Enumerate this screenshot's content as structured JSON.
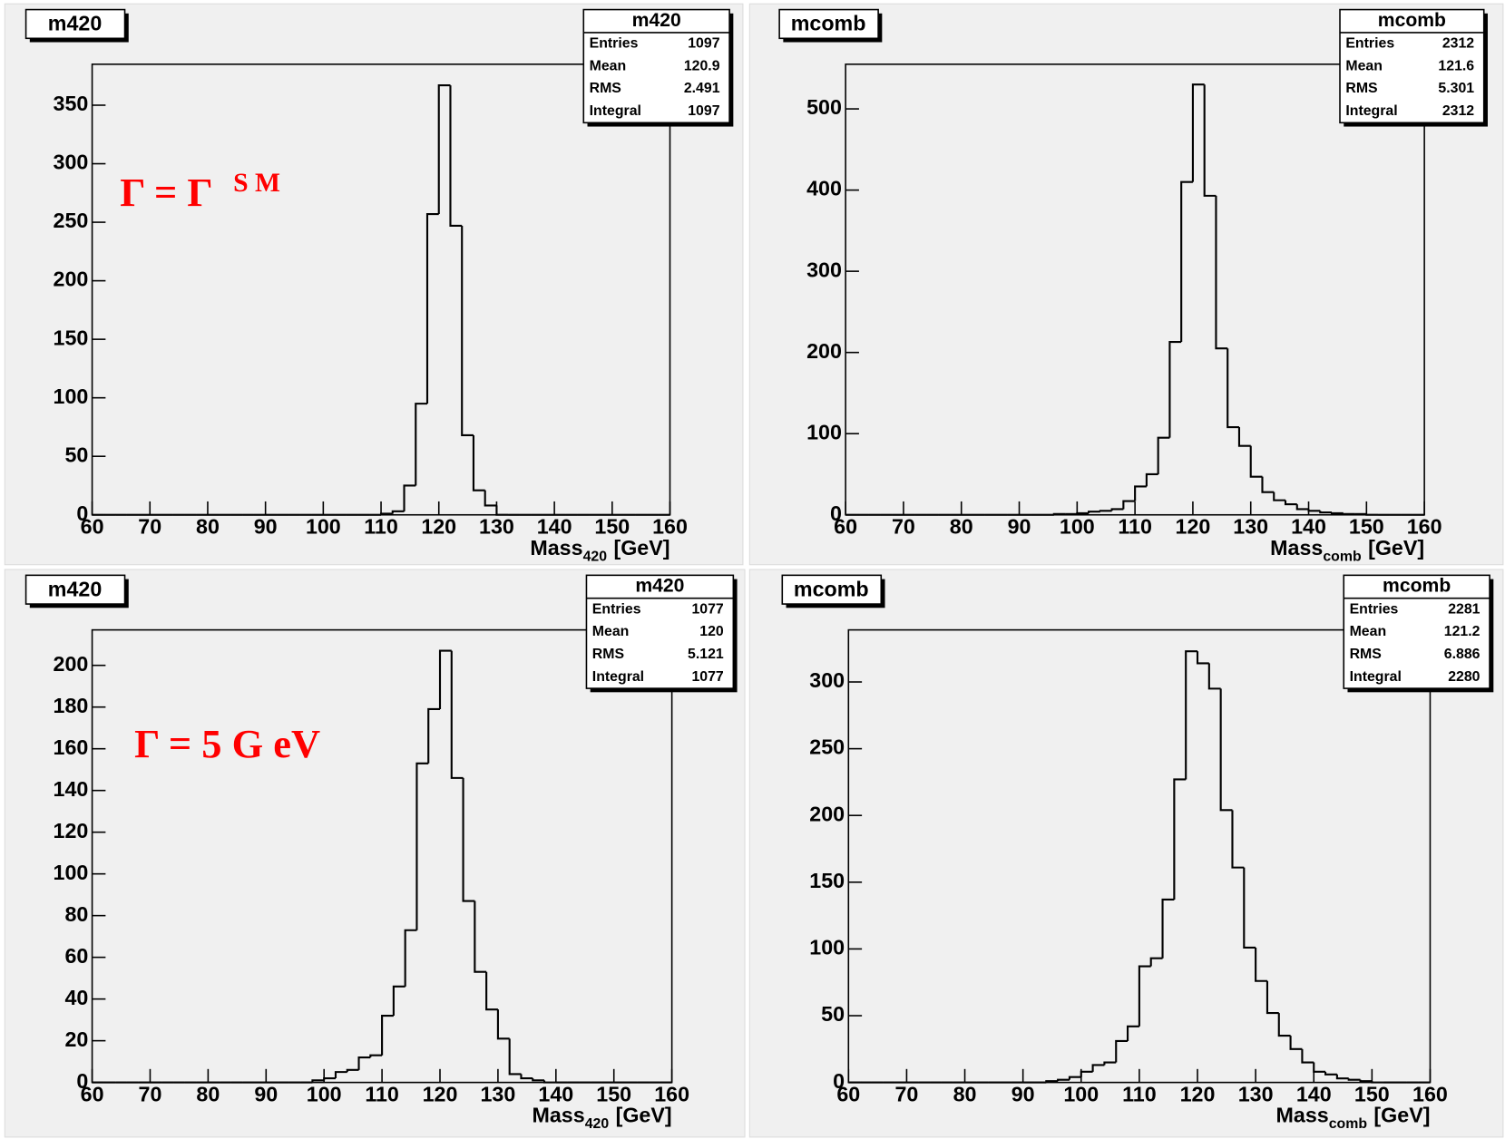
{
  "chart_data": [
    {
      "type": "histogram",
      "title": "m420",
      "annotation": {
        "text": "Γ = Γ",
        "sup": "S M"
      },
      "x_label": {
        "main": "Mass",
        "sub": "420",
        "unit": "[GeV]"
      },
      "stats": {
        "name": "m420",
        "rows": [
          {
            "label": "Entries",
            "value": 1097
          },
          {
            "label": "Mean",
            "value": 120.9
          },
          {
            "label": "RMS",
            "value": 2.491
          },
          {
            "label": "Integral",
            "value": 1097
          }
        ]
      },
      "bins": [
        60,
        62,
        64,
        66,
        68,
        70,
        72,
        74,
        76,
        78,
        80,
        82,
        84,
        86,
        88,
        90,
        92,
        94,
        96,
        98,
        100,
        102,
        104,
        106,
        108,
        110,
        112,
        114,
        116,
        118,
        120,
        122,
        124,
        126,
        128,
        130,
        132,
        134,
        136,
        138,
        140,
        142,
        144,
        146,
        148,
        150,
        152,
        154,
        156,
        158,
        160
      ],
      "values": [
        0,
        0,
        0,
        0,
        0,
        0,
        0,
        0,
        0,
        0,
        0,
        0,
        0,
        0,
        0,
        0,
        0,
        0,
        0,
        0,
        0,
        0,
        0,
        0,
        0,
        1,
        3,
        25,
        95,
        257,
        367,
        247,
        68,
        21,
        8,
        0,
        0,
        0,
        0,
        0,
        0,
        0,
        0,
        0,
        0,
        0,
        0,
        0,
        0,
        0
      ],
      "color": "#000000",
      "xlim": [
        60,
        160
      ],
      "xticks": [
        60,
        70,
        80,
        90,
        100,
        110,
        120,
        130,
        140,
        150,
        160
      ],
      "ylim": [
        0,
        385
      ],
      "yticks": [
        0,
        50,
        100,
        150,
        200,
        250,
        300,
        350
      ]
    },
    {
      "type": "histogram",
      "title": "mcomb",
      "x_label": {
        "main": "Mass",
        "sub": "comb",
        "unit": "[GeV]"
      },
      "stats": {
        "name": "mcomb",
        "rows": [
          {
            "label": "Entries",
            "value": 2312
          },
          {
            "label": "Mean",
            "value": 121.6
          },
          {
            "label": "RMS",
            "value": 5.301
          },
          {
            "label": "Integral",
            "value": 2312
          }
        ]
      },
      "bins": [
        60,
        62,
        64,
        66,
        68,
        70,
        72,
        74,
        76,
        78,
        80,
        82,
        84,
        86,
        88,
        90,
        92,
        94,
        96,
        98,
        100,
        102,
        104,
        106,
        108,
        110,
        112,
        114,
        116,
        118,
        120,
        122,
        124,
        126,
        128,
        130,
        132,
        134,
        136,
        138,
        140,
        142,
        144,
        146,
        148,
        150,
        152,
        154,
        156,
        158,
        160
      ],
      "values": [
        0,
        0,
        0,
        0,
        0,
        0,
        0,
        0,
        0,
        0,
        0,
        0,
        0,
        0,
        0,
        0,
        0,
        0,
        1,
        1,
        2,
        4,
        5,
        7,
        17,
        35,
        50,
        95,
        213,
        410,
        530,
        393,
        205,
        108,
        85,
        47,
        28,
        18,
        13,
        7,
        5,
        3,
        2,
        1,
        1,
        0,
        0,
        0,
        0,
        0
      ],
      "color": "#000000",
      "xlim": [
        60,
        160
      ],
      "xticks": [
        60,
        70,
        80,
        90,
        100,
        110,
        120,
        130,
        140,
        150,
        160
      ],
      "ylim": [
        0,
        555
      ],
      "yticks": [
        0,
        100,
        200,
        300,
        400,
        500
      ]
    },
    {
      "type": "histogram",
      "title": "m420",
      "annotation": {
        "text": "Γ = 5 G eV"
      },
      "x_label": {
        "main": "Mass",
        "sub": "420",
        "unit": "[GeV]"
      },
      "stats": {
        "name": "m420",
        "rows": [
          {
            "label": "Entries",
            "value": 1077
          },
          {
            "label": "Mean",
            "value": 120
          },
          {
            "label": "RMS",
            "value": 5.121
          },
          {
            "label": "Integral",
            "value": 1077
          }
        ]
      },
      "bins": [
        60,
        62,
        64,
        66,
        68,
        70,
        72,
        74,
        76,
        78,
        80,
        82,
        84,
        86,
        88,
        90,
        92,
        94,
        96,
        98,
        100,
        102,
        104,
        106,
        108,
        110,
        112,
        114,
        116,
        118,
        120,
        122,
        124,
        126,
        128,
        130,
        132,
        134,
        136,
        138,
        140,
        142,
        144,
        146,
        148,
        150,
        152,
        154,
        156,
        158,
        160
      ],
      "values": [
        0,
        0,
        0,
        0,
        0,
        0,
        0,
        0,
        0,
        0,
        0,
        0,
        0,
        0,
        0,
        0,
        0,
        0,
        0,
        1,
        2,
        5,
        6,
        12,
        13,
        32,
        46,
        73,
        153,
        179,
        207,
        146,
        87,
        53,
        35,
        21,
        4,
        2,
        1,
        0,
        0,
        0,
        0,
        0,
        0,
        0,
        0,
        0,
        0,
        0
      ],
      "color": "#000000",
      "xlim": [
        60,
        160
      ],
      "xticks": [
        60,
        70,
        80,
        90,
        100,
        110,
        120,
        130,
        140,
        150,
        160
      ],
      "ylim": [
        0,
        217
      ],
      "yticks": [
        0,
        20,
        40,
        60,
        80,
        100,
        120,
        140,
        160,
        180,
        200
      ]
    },
    {
      "type": "histogram",
      "title": "mcomb",
      "x_label": {
        "main": "Mass",
        "sub": "comb",
        "unit": "[GeV]"
      },
      "stats": {
        "name": "mcomb",
        "rows": [
          {
            "label": "Entries",
            "value": 2281
          },
          {
            "label": "Mean",
            "value": 121.2
          },
          {
            "label": "RMS",
            "value": 6.886
          },
          {
            "label": "Integral",
            "value": 2280
          }
        ]
      },
      "bins": [
        60,
        62,
        64,
        66,
        68,
        70,
        72,
        74,
        76,
        78,
        80,
        82,
        84,
        86,
        88,
        90,
        92,
        94,
        96,
        98,
        100,
        102,
        104,
        106,
        108,
        110,
        112,
        114,
        116,
        118,
        120,
        122,
        124,
        126,
        128,
        130,
        132,
        134,
        136,
        138,
        140,
        142,
        144,
        146,
        148,
        150,
        152,
        154,
        156,
        158,
        160
      ],
      "values": [
        0,
        0,
        0,
        0,
        0,
        0,
        0,
        0,
        0,
        0,
        0,
        0,
        0,
        0,
        0,
        0,
        0,
        1,
        2,
        4,
        8,
        13,
        15,
        31,
        42,
        87,
        93,
        137,
        227,
        323,
        314,
        295,
        204,
        161,
        101,
        76,
        52,
        35,
        25,
        15,
        8,
        6,
        3,
        2,
        1,
        0,
        0,
        0,
        0,
        0
      ],
      "color": "#000000",
      "xlim": [
        60,
        160
      ],
      "xticks": [
        60,
        70,
        80,
        90,
        100,
        110,
        120,
        130,
        140,
        150,
        160
      ],
      "ylim": [
        0,
        339
      ],
      "yticks": [
        0,
        50,
        100,
        150,
        200,
        250,
        300
      ]
    }
  ]
}
